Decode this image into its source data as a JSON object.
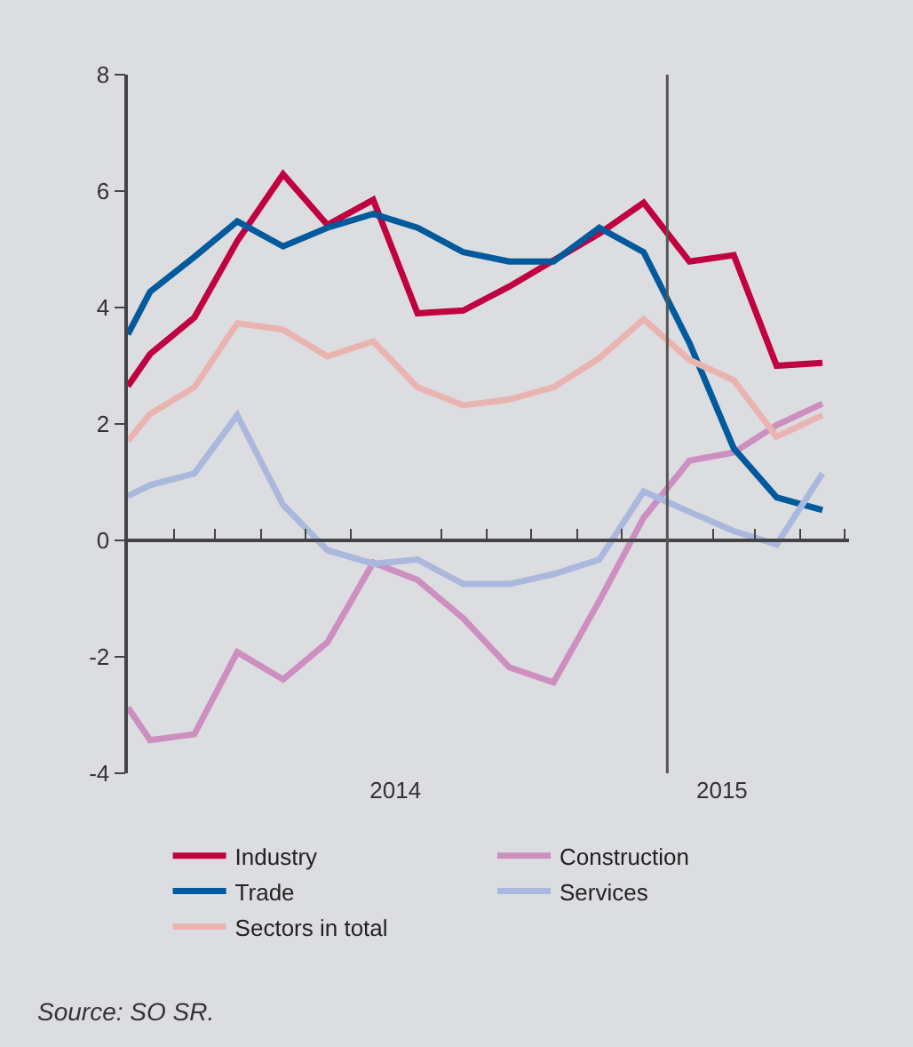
{
  "chart_data": {
    "type": "line",
    "x": [
      "2014-01-01",
      "2014-01-16",
      "2014-02-15",
      "2014-03-16",
      "2014-04-16",
      "2014-05-16",
      "2014-06-16",
      "2014-07-16",
      "2014-08-16",
      "2014-09-16",
      "2014-10-16",
      "2014-11-16",
      "2014-12-16",
      "2015-01-16",
      "2015-02-15",
      "2015-03-16",
      "2015-04-16"
    ],
    "series": [
      {
        "name": "Industry",
        "color": "#c0003f",
        "values": [
          2.65,
          3.2,
          3.83,
          5.14,
          6.29,
          5.42,
          5.85,
          3.9,
          3.95,
          4.36,
          4.81,
          5.27,
          5.8,
          4.79,
          4.9,
          3.0,
          3.05
        ]
      },
      {
        "name": "Construction",
        "color": "#cc8fc0",
        "values": [
          -2.87,
          -3.43,
          -3.33,
          -1.92,
          -2.39,
          -1.75,
          -0.38,
          -0.68,
          -1.34,
          -2.18,
          -2.44,
          -1.04,
          0.39,
          1.37,
          1.51,
          1.98,
          2.35
        ]
      },
      {
        "name": "Trade",
        "color": "#005a9c",
        "values": [
          3.54,
          4.27,
          4.87,
          5.48,
          5.05,
          5.37,
          5.61,
          5.37,
          4.95,
          4.79,
          4.79,
          5.37,
          4.95,
          3.39,
          1.58,
          0.74,
          0.52
        ]
      },
      {
        "name": "Services",
        "color": "#aab8de",
        "values": [
          0.76,
          0.95,
          1.15,
          2.15,
          0.61,
          -0.17,
          -0.4,
          -0.33,
          -0.75,
          -0.75,
          -0.58,
          -0.33,
          0.84,
          0.49,
          0.16,
          -0.07,
          1.15
        ]
      },
      {
        "name": "Sectors in total",
        "color": "#e9b4b0",
        "values": [
          1.71,
          2.17,
          2.63,
          3.73,
          3.62,
          3.16,
          3.42,
          2.63,
          2.32,
          2.42,
          2.63,
          3.13,
          3.8,
          3.1,
          2.75,
          1.78,
          2.15
        ]
      }
    ],
    "xlim": [
      "2014-01-01",
      "2015-05-04"
    ],
    "xticks": [
      {
        "value": "2014-01-01",
        "label": null
      },
      {
        "value": "2014-02-01",
        "label": null
      },
      {
        "value": "2014-03-01",
        "label": null
      },
      {
        "value": "2014-04-01",
        "label": null
      },
      {
        "value": "2014-05-01",
        "label": null
      },
      {
        "value": "2014-06-01",
        "label": null
      },
      {
        "value": "2014-07-01",
        "label": "2014"
      },
      {
        "value": "2014-08-01",
        "label": null
      },
      {
        "value": "2014-09-01",
        "label": null
      },
      {
        "value": "2014-10-01",
        "label": null
      },
      {
        "value": "2014-11-01",
        "label": null
      },
      {
        "value": "2014-12-01",
        "label": null
      },
      {
        "value": "2015-01-01",
        "label": null
      },
      {
        "value": "2015-02-01",
        "label": null
      },
      {
        "value": "2015-02-07",
        "label": "2015"
      },
      {
        "value": "2015-03-01",
        "label": null
      },
      {
        "value": "2015-04-01",
        "label": null
      },
      {
        "value": "2015-05-01",
        "label": null
      }
    ],
    "ylim": [
      -4,
      8
    ],
    "yticks": [
      -4,
      -2,
      0,
      2,
      4,
      6,
      8
    ],
    "ref_lines": [
      {
        "axis": "x",
        "value": "2015-01-01",
        "label": null,
        "color": "#555555"
      }
    ],
    "annotations": [
      "Source: SO SR."
    ],
    "grid": false,
    "legend": "bottom",
    "marker": "none",
    "line_style": "solid"
  }
}
